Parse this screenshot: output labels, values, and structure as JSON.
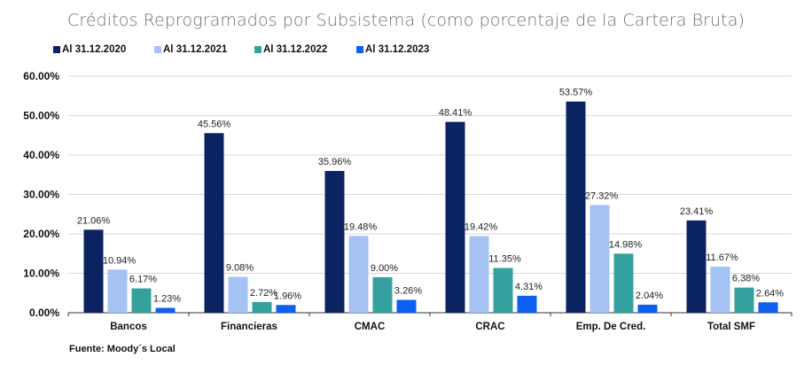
{
  "chart_data": {
    "type": "bar",
    "title": "Créditos Reprogramados por Subsistema (como porcentaje de la Cartera Bruta)",
    "xlabel": "",
    "ylabel": "",
    "ylim": [
      0,
      60
    ],
    "yticks": [
      "0.00%",
      "10.00%",
      "20.00%",
      "30.00%",
      "40.00%",
      "50.00%",
      "60.00%"
    ],
    "ytick_values": [
      0,
      10,
      20,
      30,
      40,
      50,
      60
    ],
    "grid": true,
    "legend_position": "top-left",
    "categories": [
      "Bancos",
      "Financieras",
      "CMAC",
      "CRAC",
      "Emp. De Cred.",
      "Total SMF"
    ],
    "series": [
      {
        "name": "Al 31.12.2020",
        "color": "#0b2461",
        "values": [
          21.06,
          45.56,
          35.96,
          48.41,
          53.57,
          23.41
        ],
        "labels": [
          "21.06%",
          "45.56%",
          "35.96%",
          "48.41%",
          "53.57%",
          "23.41%"
        ]
      },
      {
        "name": "Al 31.12.2021",
        "color": "#a4c2f4",
        "values": [
          10.94,
          9.08,
          19.48,
          19.42,
          27.32,
          11.67
        ],
        "labels": [
          "10.94%",
          "9.08%",
          "19.48%",
          "19.42%",
          "27.32%",
          "11.67%"
        ]
      },
      {
        "name": "Al 31.12.2022",
        "color": "#35a19f",
        "values": [
          6.17,
          2.72,
          9.0,
          11.35,
          14.98,
          6.38
        ],
        "labels": [
          "6.17%",
          "2.72%",
          "9.00%",
          "11.35%",
          "14.98%",
          "6.38%"
        ]
      },
      {
        "name": "Al 31.12.2023",
        "color": "#0d5ff0",
        "values": [
          1.23,
          1.96,
          3.26,
          4.31,
          2.04,
          2.64
        ],
        "labels": [
          "1.23%",
          "1.96%",
          "3.26%",
          "4.31%",
          "2.04%",
          "2.64%"
        ]
      }
    ],
    "source": "Fuente: Moody´s Local"
  }
}
